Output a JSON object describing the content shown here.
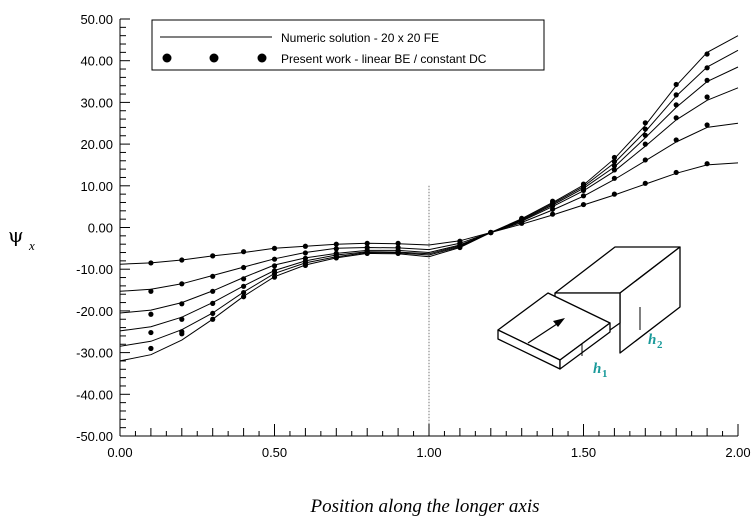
{
  "chart_data": {
    "type": "line",
    "title": "",
    "xlabel": "Position along the longer axis",
    "ylabel": "ψ",
    "ylabel_subscript": "x",
    "xlim": [
      0.0,
      2.0
    ],
    "ylim": [
      -50.0,
      50.0
    ],
    "x_ticks": [
      "0.00",
      "0.50",
      "1.00",
      "1.50",
      "2.00"
    ],
    "y_ticks": [
      "50.00",
      "40.00",
      "30.00",
      "20.00",
      "10.00",
      "0.00",
      "-10.00",
      "-20.00",
      "-30.00",
      "-40.00",
      "-50.00"
    ],
    "grid": false,
    "vertical_reference_line_x": 1.0,
    "legend": {
      "placement": "top-left",
      "line_label": "Numeric solution - 20 x 20 FE",
      "marker_label": "Present work - linear BE / constant DC"
    },
    "inset_labels": {
      "h1": "h",
      "h1_sub": "1",
      "h2": "h",
      "h2_sub": "2"
    },
    "numeric_solution": [
      {
        "x": [
          0.0,
          0.1,
          0.2,
          0.3,
          0.4,
          0.5,
          0.6,
          0.7,
          0.8,
          0.9,
          1.0,
          1.1,
          1.2,
          1.3,
          1.4,
          1.5,
          1.6,
          1.7,
          1.8,
          1.9,
          2.0
        ],
        "y": [
          -8.8,
          -8.5,
          -7.8,
          -6.8,
          -6.0,
          -5.0,
          -4.5,
          -4.0,
          -3.8,
          -3.9,
          -4.2,
          -3.2,
          -1.2,
          0.8,
          3.0,
          5.4,
          7.8,
          10.4,
          13.0,
          15.0,
          15.5
        ]
      },
      {
        "x": [
          0.0,
          0.1,
          0.2,
          0.3,
          0.4,
          0.5,
          0.6,
          0.7,
          0.8,
          0.9,
          1.0,
          1.1,
          1.2,
          1.3,
          1.4,
          1.5,
          1.6,
          1.7,
          1.8,
          1.9,
          2.0
        ],
        "y": [
          -15.3,
          -14.8,
          -13.5,
          -11.5,
          -9.5,
          -7.5,
          -6.0,
          -5.0,
          -4.8,
          -4.9,
          -5.3,
          -3.8,
          -1.2,
          1.2,
          4.2,
          7.5,
          11.5,
          16.0,
          20.5,
          24.0,
          25.0
        ]
      },
      {
        "x": [
          0.0,
          0.1,
          0.2,
          0.3,
          0.4,
          0.5,
          0.6,
          0.7,
          0.8,
          0.9,
          1.0,
          1.1,
          1.2,
          1.3,
          1.4,
          1.5,
          1.6,
          1.7,
          1.8,
          1.9,
          2.0
        ],
        "y": [
          -20.5,
          -19.8,
          -18.0,
          -15.2,
          -12.0,
          -9.0,
          -7.3,
          -6.2,
          -5.5,
          -5.5,
          -6.0,
          -4.2,
          -1.2,
          1.5,
          5.0,
          8.8,
          13.5,
          19.5,
          25.8,
          30.5,
          33.5
        ]
      },
      {
        "x": [
          0.0,
          0.1,
          0.2,
          0.3,
          0.4,
          0.5,
          0.6,
          0.7,
          0.8,
          0.9,
          1.0,
          1.1,
          1.2,
          1.3,
          1.4,
          1.5,
          1.6,
          1.7,
          1.8,
          1.9,
          2.0
        ],
        "y": [
          -24.8,
          -23.8,
          -21.5,
          -18.0,
          -14.0,
          -10.3,
          -8.0,
          -6.6,
          -5.8,
          -5.9,
          -6.3,
          -4.4,
          -1.2,
          1.7,
          5.4,
          9.4,
          14.5,
          21.5,
          28.8,
          35.0,
          38.5
        ]
      },
      {
        "x": [
          0.0,
          0.1,
          0.2,
          0.3,
          0.4,
          0.5,
          0.6,
          0.7,
          0.8,
          0.9,
          1.0,
          1.1,
          1.2,
          1.3,
          1.4,
          1.5,
          1.6,
          1.7,
          1.8,
          1.9,
          2.0
        ],
        "y": [
          -28.5,
          -27.3,
          -24.5,
          -20.5,
          -15.5,
          -11.0,
          -8.5,
          -7.0,
          -6.0,
          -6.1,
          -6.6,
          -4.6,
          -1.2,
          1.9,
          5.7,
          9.8,
          15.5,
          23.0,
          31.5,
          38.5,
          42.5
        ]
      },
      {
        "x": [
          0.0,
          0.1,
          0.2,
          0.3,
          0.4,
          0.5,
          0.6,
          0.7,
          0.8,
          0.9,
          1.0,
          1.1,
          1.2,
          1.3,
          1.4,
          1.5,
          1.6,
          1.7,
          1.8,
          1.9,
          2.0
        ],
        "y": [
          -32.0,
          -30.5,
          -27.0,
          -22.0,
          -16.5,
          -11.8,
          -9.0,
          -7.3,
          -6.2,
          -6.3,
          -7.0,
          -4.8,
          -1.2,
          2.1,
          6.0,
          10.2,
          16.5,
          24.5,
          34.0,
          42.0,
          46.0
        ]
      }
    ],
    "present_work": [
      {
        "x": [
          0.1,
          0.2,
          0.3,
          0.4,
          0.5,
          0.6,
          0.7,
          0.8,
          0.9,
          1.1,
          1.2,
          1.3,
          1.4,
          1.5,
          1.6,
          1.7,
          1.8,
          1.9
        ],
        "y": [
          -8.5,
          -7.8,
          -6.8,
          -5.8,
          -5.0,
          -4.5,
          -4.0,
          -3.8,
          -3.8,
          -3.3,
          -1.2,
          1.0,
          3.2,
          5.5,
          8.0,
          10.6,
          13.2,
          15.3
        ]
      },
      {
        "x": [
          0.1,
          0.2,
          0.3,
          0.4,
          0.5,
          0.6,
          0.7,
          0.8,
          0.9,
          1.1,
          1.2,
          1.3,
          1.4,
          1.5,
          1.6,
          1.7,
          1.8,
          1.9
        ],
        "y": [
          -15.3,
          -13.5,
          -11.7,
          -9.6,
          -7.6,
          -6.1,
          -5.1,
          -4.8,
          -4.8,
          -3.8,
          -1.2,
          1.3,
          4.4,
          7.6,
          11.8,
          16.2,
          21.0,
          24.6
        ]
      },
      {
        "x": [
          0.1,
          0.2,
          0.3,
          0.4,
          0.5,
          0.6,
          0.7,
          0.8,
          0.9,
          1.1,
          1.2,
          1.3,
          1.4,
          1.5,
          1.6,
          1.7,
          1.8,
          1.9
        ],
        "y": [
          -20.8,
          -18.3,
          -15.3,
          -12.3,
          -9.2,
          -7.4,
          -6.2,
          -5.5,
          -5.5,
          -4.2,
          -1.2,
          1.6,
          5.2,
          8.9,
          13.8,
          20.0,
          26.3,
          31.3
        ]
      },
      {
        "x": [
          0.1,
          0.2,
          0.3,
          0.4,
          0.5,
          0.6,
          0.7,
          0.8,
          0.9,
          1.1,
          1.2,
          1.3,
          1.4,
          1.5,
          1.6,
          1.7,
          1.8,
          1.9
        ],
        "y": [
          -25.2,
          -22.0,
          -18.2,
          -14.1,
          -10.4,
          -8.1,
          -6.6,
          -5.8,
          -5.8,
          -4.4,
          -1.2,
          1.8,
          5.6,
          9.5,
          14.8,
          22.1,
          29.4,
          35.3
        ]
      },
      {
        "x": [
          0.1,
          0.2,
          0.3,
          0.4,
          0.5,
          0.6,
          0.7,
          0.8,
          0.9,
          1.1,
          1.2,
          1.3,
          1.4,
          1.5,
          1.6,
          1.7,
          1.8,
          1.9
        ],
        "y": [
          -29.0,
          -25.0,
          -20.6,
          -15.6,
          -11.1,
          -8.6,
          -7.0,
          -6.0,
          -6.0,
          -4.6,
          -1.2,
          2.0,
          5.9,
          9.9,
          15.8,
          23.6,
          31.8,
          38.3
        ]
      },
      {
        "x": [
          0.1,
          0.2,
          0.3,
          0.4,
          0.5,
          0.6,
          0.7,
          0.8,
          0.9,
          1.1,
          1.2,
          1.3,
          1.4,
          1.5,
          1.6,
          1.7,
          1.8,
          1.9
        ],
        "y": [
          -29.0,
          -25.5,
          -22.0,
          -16.6,
          -11.9,
          -9.1,
          -7.3,
          -6.2,
          -6.2,
          -4.8,
          -1.2,
          2.2,
          6.3,
          10.4,
          16.8,
          25.1,
          34.3,
          41.6
        ]
      }
    ]
  }
}
